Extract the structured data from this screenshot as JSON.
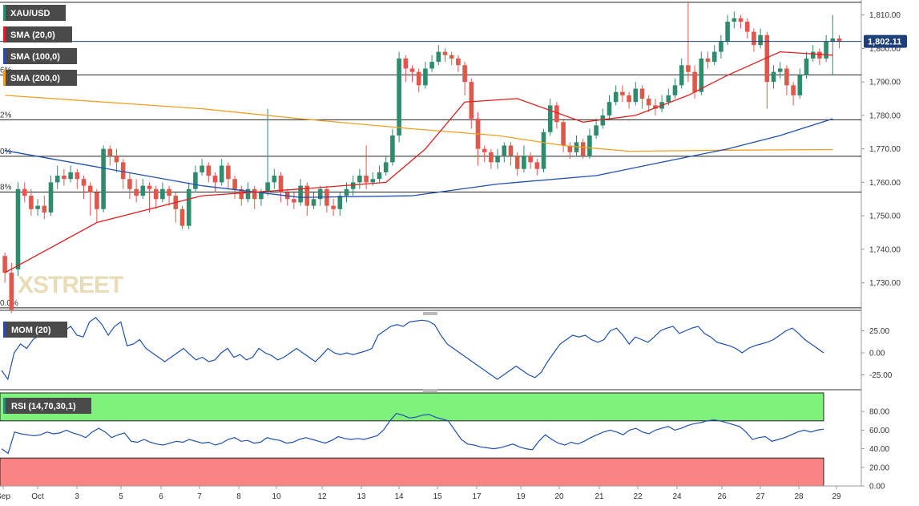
{
  "chart_data": [
    {
      "type": "candlestick",
      "title": "XAU/USD",
      "indicators": [
        "SMA (20,0)",
        "SMA (100,0)",
        "SMA (200,0)"
      ],
      "indicator_colors": [
        "#e02020",
        "#1f50b0",
        "#f0a020"
      ],
      "y_ticks": [
        "1,730.00",
        "1,740.00",
        "1,750.00",
        "1,760.00",
        "1,770.00",
        "1,780.00",
        "1,790.00",
        "1,800.00",
        "1,810.00"
      ],
      "ylim": [
        1722,
        1814
      ],
      "last_price": "1,802.11",
      "fib_labels": [
        {
          "text": "6%",
          "price": 1792.1
        },
        {
          "text": "2%",
          "price": 1778.7
        },
        {
          "text": "0%",
          "price": 1767.8
        },
        {
          "text": "8%",
          "price": 1757.1
        },
        {
          "text": "0.0%",
          "price": 1722.5
        }
      ],
      "fib_levels": [
        1813.8,
        1792.1,
        1778.7,
        1767.8,
        1757.1,
        1722.5
      ],
      "x_labels": [
        "Sep",
        "Oct",
        "3",
        "5",
        "6",
        "7",
        "8",
        "10",
        "12",
        "13",
        "14",
        "15",
        "17",
        "19",
        "20",
        "21",
        "22",
        "24",
        "26",
        "27",
        "28",
        "29"
      ],
      "watermark": "XSTREET",
      "candles": [
        [
          1738,
          1733,
          1739,
          1730
        ],
        [
          1733,
          1722,
          1736,
          1721
        ],
        [
          1734,
          1758,
          1760,
          1732
        ],
        [
          1758,
          1756,
          1760,
          1754
        ],
        [
          1756,
          1752,
          1758,
          1750
        ],
        [
          1752,
          1753,
          1755,
          1750
        ],
        [
          1753,
          1751,
          1756,
          1749
        ],
        [
          1751,
          1760,
          1762,
          1750
        ],
        [
          1760,
          1762,
          1765,
          1758
        ],
        [
          1762,
          1761,
          1764,
          1759
        ],
        [
          1761,
          1763,
          1765,
          1760
        ],
        [
          1763,
          1761,
          1764,
          1758
        ],
        [
          1761,
          1759,
          1762,
          1755
        ],
        [
          1759,
          1757,
          1760,
          1750
        ],
        [
          1757,
          1752,
          1758,
          1748
        ],
        [
          1752,
          1770,
          1771,
          1751
        ],
        [
          1770,
          1768,
          1771,
          1765
        ],
        [
          1768,
          1766,
          1770,
          1763
        ],
        [
          1766,
          1761,
          1767,
          1758
        ],
        [
          1761,
          1758,
          1763,
          1755
        ],
        [
          1758,
          1756,
          1761,
          1754
        ],
        [
          1756,
          1759,
          1761,
          1755
        ],
        [
          1759,
          1758,
          1760,
          1751
        ],
        [
          1758,
          1755,
          1759,
          1752
        ],
        [
          1755,
          1758,
          1760,
          1754
        ],
        [
          1758,
          1756,
          1759,
          1753
        ],
        [
          1756,
          1752,
          1757,
          1748
        ],
        [
          1752,
          1747,
          1753,
          1746
        ],
        [
          1747,
          1758,
          1760,
          1746
        ],
        [
          1758,
          1763,
          1765,
          1757
        ],
        [
          1763,
          1765,
          1767,
          1762
        ],
        [
          1765,
          1762,
          1766,
          1760
        ],
        [
          1762,
          1760,
          1763,
          1757
        ],
        [
          1760,
          1765,
          1767,
          1759
        ],
        [
          1765,
          1761,
          1766,
          1758
        ],
        [
          1761,
          1758,
          1762,
          1755
        ],
        [
          1758,
          1755,
          1759,
          1753
        ],
        [
          1755,
          1758,
          1760,
          1754
        ],
        [
          1758,
          1755,
          1759,
          1752
        ],
        [
          1755,
          1757,
          1758,
          1753
        ],
        [
          1757,
          1760,
          1782,
          1756
        ],
        [
          1760,
          1762,
          1764,
          1758
        ],
        [
          1762,
          1757,
          1763,
          1754
        ],
        [
          1757,
          1755,
          1758,
          1753
        ],
        [
          1755,
          1754,
          1757,
          1752
        ],
        [
          1754,
          1759,
          1761,
          1753
        ],
        [
          1759,
          1753,
          1760,
          1750
        ],
        [
          1753,
          1755,
          1757,
          1752
        ],
        [
          1755,
          1758,
          1759,
          1753
        ],
        [
          1758,
          1753,
          1759,
          1751
        ],
        [
          1753,
          1752,
          1755,
          1750
        ],
        [
          1752,
          1756,
          1757,
          1750
        ],
        [
          1756,
          1758,
          1760,
          1754
        ],
        [
          1758,
          1760,
          1762,
          1756
        ],
        [
          1760,
          1762,
          1764,
          1758
        ],
        [
          1762,
          1760,
          1771,
          1758
        ],
        [
          1760,
          1761,
          1763,
          1759
        ],
        [
          1761,
          1763,
          1765,
          1760
        ],
        [
          1763,
          1766,
          1768,
          1762
        ],
        [
          1766,
          1774,
          1776,
          1765
        ],
        [
          1774,
          1797,
          1799,
          1772
        ],
        [
          1797,
          1794,
          1798,
          1790
        ],
        [
          1794,
          1793,
          1795,
          1790
        ],
        [
          1793,
          1789,
          1794,
          1787
        ],
        [
          1789,
          1794,
          1796,
          1788
        ],
        [
          1794,
          1796,
          1798,
          1793
        ],
        [
          1796,
          1799,
          1801,
          1795
        ],
        [
          1799,
          1798,
          1800,
          1796
        ],
        [
          1798,
          1797,
          1799,
          1795
        ],
        [
          1797,
          1795,
          1798,
          1793
        ],
        [
          1795,
          1790,
          1796,
          1786
        ],
        [
          1790,
          1779,
          1791,
          1776
        ],
        [
          1779,
          1770,
          1781,
          1765
        ],
        [
          1770,
          1769,
          1771,
          1766
        ],
        [
          1769,
          1766,
          1770,
          1764
        ],
        [
          1766,
          1768,
          1770,
          1764
        ],
        [
          1768,
          1771,
          1772,
          1766
        ],
        [
          1771,
          1768,
          1772,
          1765
        ],
        [
          1768,
          1764,
          1769,
          1762
        ],
        [
          1764,
          1768,
          1771,
          1763
        ],
        [
          1768,
          1766,
          1769,
          1764
        ],
        [
          1766,
          1764,
          1767,
          1762
        ],
        [
          1764,
          1775,
          1776,
          1763
        ],
        [
          1775,
          1783,
          1785,
          1774
        ],
        [
          1783,
          1778,
          1784,
          1776
        ],
        [
          1778,
          1771,
          1779,
          1769
        ],
        [
          1771,
          1769,
          1772,
          1767
        ],
        [
          1769,
          1772,
          1774,
          1768
        ],
        [
          1772,
          1768,
          1773,
          1767
        ],
        [
          1768,
          1774,
          1776,
          1767
        ],
        [
          1774,
          1777,
          1779,
          1773
        ],
        [
          1777,
          1780,
          1782,
          1776
        ],
        [
          1780,
          1784,
          1786,
          1779
        ],
        [
          1784,
          1787,
          1789,
          1783
        ],
        [
          1787,
          1786,
          1789,
          1784
        ],
        [
          1786,
          1784,
          1787,
          1782
        ],
        [
          1784,
          1788,
          1790,
          1783
        ],
        [
          1788,
          1785,
          1789,
          1782
        ],
        [
          1785,
          1783,
          1786,
          1781
        ],
        [
          1783,
          1782,
          1785,
          1780
        ],
        [
          1782,
          1784,
          1786,
          1781
        ],
        [
          1784,
          1786,
          1788,
          1783
        ],
        [
          1786,
          1789,
          1791,
          1785
        ],
        [
          1789,
          1795,
          1797,
          1788
        ],
        [
          1795,
          1793,
          1814,
          1790
        ],
        [
          1793,
          1787,
          1795,
          1785
        ],
        [
          1787,
          1797,
          1799,
          1786
        ],
        [
          1797,
          1796,
          1799,
          1794
        ],
        [
          1796,
          1799,
          1801,
          1795
        ],
        [
          1799,
          1802,
          1804,
          1797
        ],
        [
          1802,
          1808,
          1810,
          1801
        ],
        [
          1808,
          1809,
          1811,
          1806
        ],
        [
          1809,
          1808,
          1810,
          1806
        ],
        [
          1808,
          1805,
          1809,
          1803
        ],
        [
          1805,
          1801,
          1806,
          1799
        ],
        [
          1801,
          1804,
          1806,
          1800
        ],
        [
          1804,
          1790,
          1805,
          1782
        ],
        [
          1790,
          1793,
          1795,
          1788
        ],
        [
          1793,
          1794,
          1796,
          1791
        ],
        [
          1794,
          1789,
          1795,
          1786
        ],
        [
          1789,
          1786,
          1790,
          1783
        ],
        [
          1786,
          1792,
          1794,
          1785
        ],
        [
          1792,
          1797,
          1799,
          1791
        ],
        [
          1797,
          1799,
          1801,
          1796
        ],
        [
          1799,
          1797,
          1800,
          1795
        ],
        [
          1797,
          1802,
          1804,
          1796
        ],
        [
          1802,
          1803,
          1810,
          1792
        ],
        [
          1803,
          1802,
          1804,
          1800
        ]
      ],
      "sma20": [
        [
          0,
          1733
        ],
        [
          14,
          1748
        ],
        [
          30,
          1756
        ],
        [
          45,
          1758
        ],
        [
          58,
          1760
        ],
        [
          64,
          1770
        ],
        [
          70,
          1784
        ],
        [
          78,
          1785
        ],
        [
          88,
          1778
        ],
        [
          96,
          1780
        ],
        [
          104,
          1786
        ],
        [
          110,
          1792
        ],
        [
          118,
          1799
        ],
        [
          126,
          1798
        ]
      ],
      "sma100": [
        [
          0,
          1769.5
        ],
        [
          30,
          1759
        ],
        [
          45,
          1755.5
        ],
        [
          62,
          1756
        ],
        [
          75,
          1759.5
        ],
        [
          90,
          1762
        ],
        [
          100,
          1766
        ],
        [
          110,
          1770
        ],
        [
          118,
          1774
        ],
        [
          126,
          1779
        ]
      ],
      "sma200": [
        [
          0,
          1786
        ],
        [
          30,
          1782
        ],
        [
          45,
          1779
        ],
        [
          62,
          1776
        ],
        [
          75,
          1774
        ],
        [
          85,
          1771
        ],
        [
          95,
          1769.3
        ],
        [
          110,
          1769.6
        ],
        [
          126,
          1769.8
        ]
      ]
    },
    {
      "type": "line",
      "title": "MOM (20)",
      "color": "#1f50b0",
      "y_ticks": [
        "25.00",
        "0.00",
        "-25.00"
      ],
      "ylim": [
        -40,
        40
      ],
      "values": [
        -20,
        -30,
        0,
        10,
        5,
        15,
        20,
        25,
        28,
        22,
        25,
        30,
        20,
        18,
        35,
        40,
        32,
        20,
        30,
        35,
        8,
        10,
        15,
        5,
        0,
        -5,
        -10,
        -5,
        0,
        5,
        -2,
        -8,
        -5,
        -10,
        -8,
        0,
        5,
        -5,
        -2,
        -8,
        -5,
        5,
        0,
        -3,
        -8,
        -5,
        0,
        5,
        0,
        -5,
        -10,
        -3,
        5,
        0,
        -2,
        0,
        -2,
        0,
        2,
        5,
        20,
        25,
        30,
        32,
        30,
        35,
        36,
        37,
        36,
        32,
        20,
        10,
        5,
        0,
        -5,
        -10,
        -15,
        -20,
        -25,
        -30,
        -25,
        -20,
        -15,
        -20,
        -25,
        -28,
        -22,
        -10,
        0,
        10,
        15,
        20,
        18,
        20,
        15,
        12,
        15,
        25,
        28,
        20,
        10,
        18,
        15,
        12,
        18,
        25,
        28,
        30,
        22,
        25,
        28,
        30,
        22,
        18,
        12,
        10,
        8,
        5,
        0,
        5,
        8,
        10,
        12,
        15,
        20,
        25,
        28,
        22,
        15,
        10,
        5,
        0
      ],
      "x_labels": [
        "Sep",
        "Oct",
        "3",
        "5",
        "6",
        "7",
        "8",
        "10",
        "12",
        "13",
        "14",
        "15",
        "17",
        "19",
        "20",
        "21",
        "22",
        "24",
        "26",
        "27",
        "28",
        "29"
      ]
    },
    {
      "type": "line",
      "title": "RSI (14,70,30,1)",
      "color": "#1f50b0",
      "y_ticks": [
        "80.00",
        "60.00",
        "40.00",
        "20.00",
        "0.00"
      ],
      "ylim": [
        0,
        100
      ],
      "overbought": 70,
      "oversold": 30,
      "values": [
        40,
        35,
        58,
        56,
        55,
        54,
        55,
        58,
        56,
        57,
        60,
        57,
        55,
        52,
        58,
        62,
        58,
        52,
        55,
        57,
        48,
        47,
        50,
        47,
        45,
        44,
        46,
        48,
        47,
        50,
        48,
        46,
        47,
        44,
        46,
        50,
        52,
        48,
        49,
        46,
        47,
        52,
        50,
        49,
        46,
        47,
        50,
        52,
        50,
        48,
        46,
        49,
        53,
        51,
        50,
        51,
        50,
        52,
        54,
        60,
        70,
        78,
        76,
        73,
        74,
        76,
        77,
        74,
        72,
        70,
        60,
        50,
        45,
        44,
        42,
        41,
        40,
        41,
        43,
        45,
        42,
        40,
        39,
        48,
        55,
        50,
        46,
        44,
        47,
        45,
        48,
        52,
        55,
        58,
        60,
        58,
        55,
        60,
        62,
        58,
        56,
        60,
        62,
        64,
        60,
        62,
        65,
        67,
        68,
        70,
        71,
        70,
        68,
        66,
        64,
        58,
        50,
        52,
        53,
        48,
        50,
        52,
        55,
        58,
        60,
        58,
        60,
        61
      ]
    }
  ]
}
